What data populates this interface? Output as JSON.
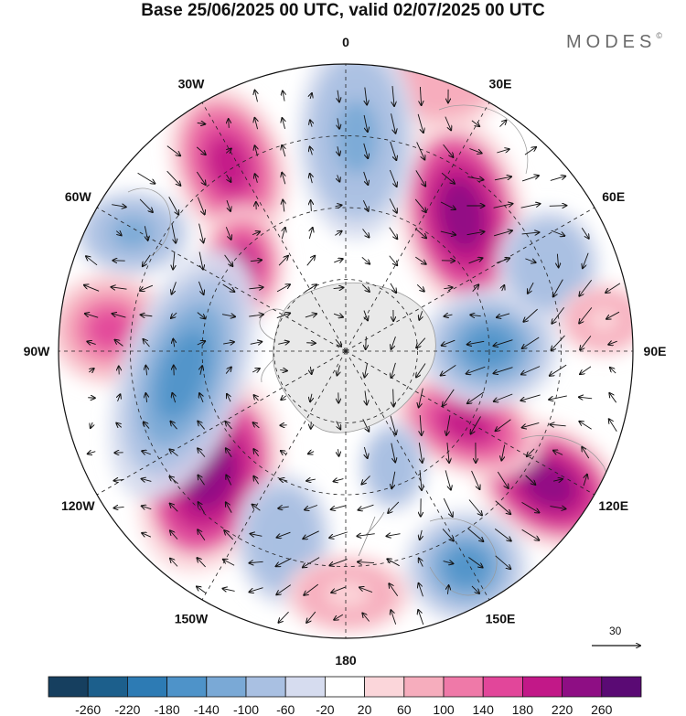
{
  "title": "Base 25/06/2025 00 UTC, valid 02/07/2025 00 UTC",
  "brand": {
    "name": "MODES",
    "mark": "©"
  },
  "map": {
    "projection": "south-polar-stereographic",
    "longitude_labels": [
      {
        "text": "0",
        "lon": 0
      },
      {
        "text": "30E",
        "lon": 30
      },
      {
        "text": "60E",
        "lon": 60
      },
      {
        "text": "90E",
        "lon": 90
      },
      {
        "text": "120E",
        "lon": 120
      },
      {
        "text": "150E",
        "lon": 150
      },
      {
        "text": "180",
        "lon": 180
      },
      {
        "text": "150W",
        "lon": -150
      },
      {
        "text": "120W",
        "lon": -120
      },
      {
        "text": "90W",
        "lon": -90
      },
      {
        "text": "60W",
        "lon": -60
      },
      {
        "text": "30W",
        "lon": -30
      }
    ],
    "wind_reference": {
      "value": "30"
    }
  },
  "colorbar": {
    "ticks": [
      "-260",
      "-220",
      "-180",
      "-140",
      "-100",
      "-60",
      "-20",
      "20",
      "60",
      "100",
      "140",
      "180",
      "220",
      "260"
    ],
    "colors": [
      "#163f5f",
      "#1c5f8c",
      "#2d7bb4",
      "#4e93c9",
      "#7aa9d6",
      "#a9c0e2",
      "#d6dcef",
      "#ffffff",
      "#fbd6da",
      "#f6adbd",
      "#ef79a8",
      "#e2469a",
      "#c21888",
      "#8e0e84",
      "#5a0a74"
    ]
  }
}
